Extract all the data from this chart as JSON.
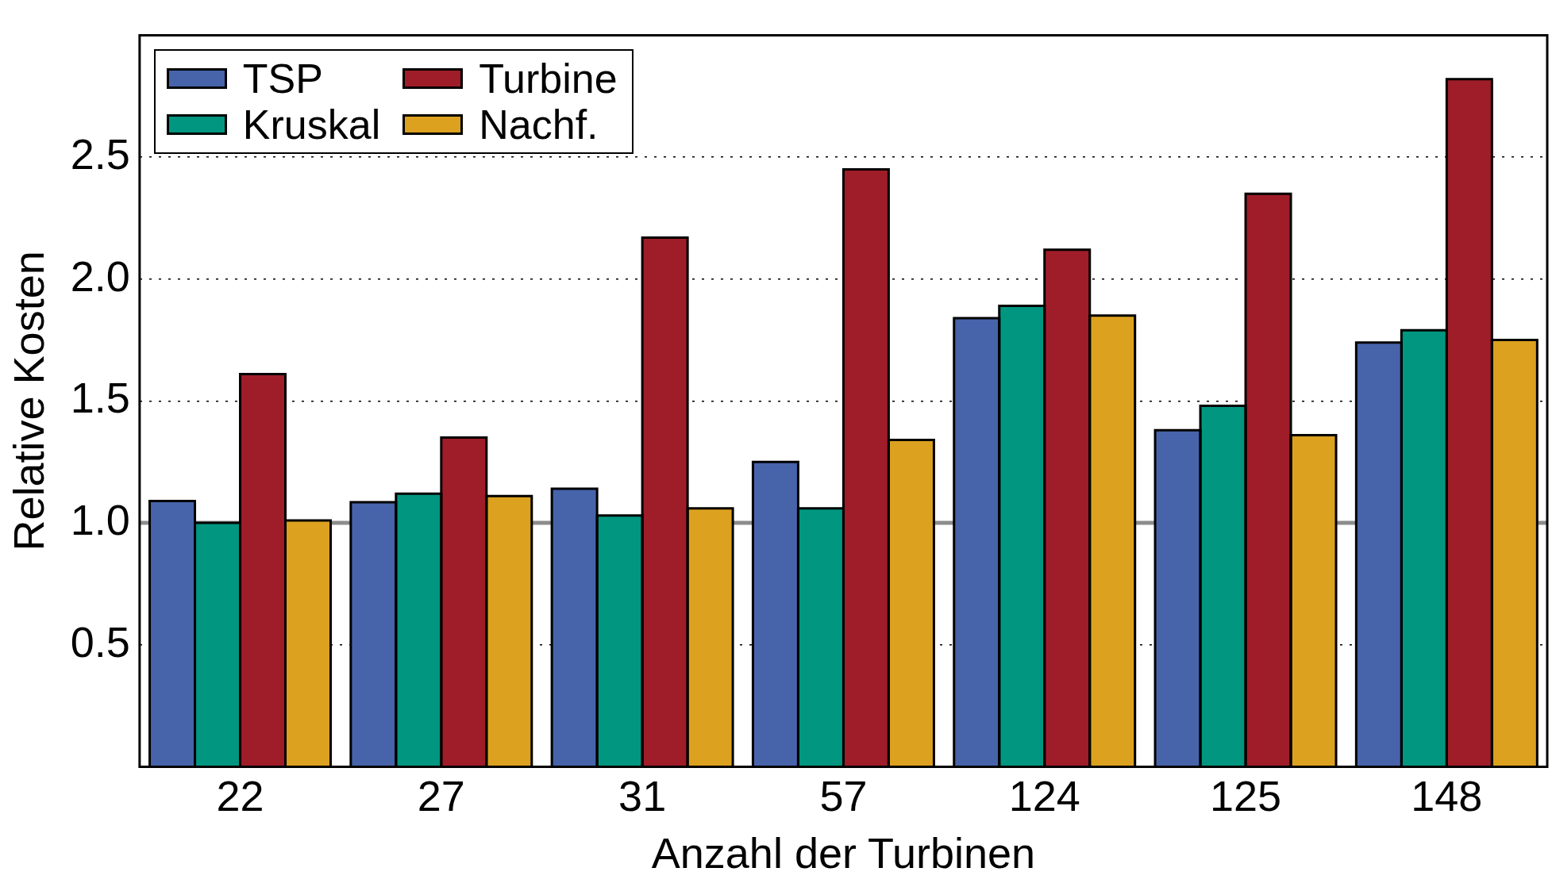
{
  "chart_data": {
    "type": "bar",
    "xlabel": "Anzahl der Turbinen",
    "ylabel": "Relative Kosten",
    "categories": [
      "22",
      "27",
      "31",
      "57",
      "124",
      "125",
      "148"
    ],
    "series": [
      {
        "name": "TSP",
        "color": "#4764aa",
        "values": [
          1.09,
          1.085,
          1.14,
          1.25,
          1.84,
          1.38,
          1.74
        ]
      },
      {
        "name": "Kruskal",
        "color": "#019680",
        "values": [
          1.0,
          1.12,
          1.03,
          1.06,
          1.89,
          1.48,
          1.79
        ]
      },
      {
        "name": "Turbine",
        "color": "#9f1d28",
        "values": [
          1.61,
          1.35,
          2.17,
          2.45,
          2.12,
          2.35,
          2.82
        ]
      },
      {
        "name": "Nachf.",
        "color": "#dca11f",
        "values": [
          1.01,
          1.11,
          1.06,
          1.34,
          1.85,
          1.36,
          1.75
        ]
      }
    ],
    "ylim": [
      0,
      3
    ],
    "yticks": [
      0.5,
      {
        "value": 1,
        "label": "1.0"
      },
      1.5,
      {
        "value": 2,
        "label": "2.0"
      },
      2.5
    ],
    "ref_lines": [
      {
        "axis": "y",
        "value": 1,
        "color": "#8c8c8c"
      }
    ],
    "grid": "y",
    "legend": "top left"
  }
}
